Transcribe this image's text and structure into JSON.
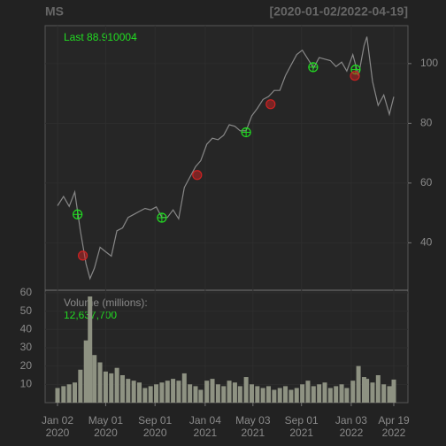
{
  "chart_data": {
    "type": "line",
    "title": "MS",
    "range_label": "[2020-01-02/2022-04-19]",
    "last_label": "Last 88.910004",
    "volume_label": "Volume (millions):",
    "volume_last": "12,637,700",
    "color": "#888888",
    "volume_color": "#8e9282",
    "buy_color": "#22dd22",
    "sell_color": "#cc2222",
    "grid": true,
    "x": [
      "2020-01-02",
      "2020-01-17",
      "2020-01-31",
      "2020-02-14",
      "2020-02-28",
      "2020-03-13",
      "2020-03-23",
      "2020-04-03",
      "2020-04-17",
      "2020-05-01",
      "2020-05-15",
      "2020-05-29",
      "2020-06-12",
      "2020-06-26",
      "2020-07-10",
      "2020-07-24",
      "2020-08-07",
      "2020-08-21",
      "2020-09-04",
      "2020-09-18",
      "2020-10-02",
      "2020-10-16",
      "2020-10-30",
      "2020-11-13",
      "2020-11-27",
      "2020-12-11",
      "2020-12-24",
      "2021-01-08",
      "2021-01-22",
      "2021-02-05",
      "2021-02-19",
      "2021-03-05",
      "2021-03-19",
      "2021-04-01",
      "2021-04-16",
      "2021-04-30",
      "2021-05-14",
      "2021-05-28",
      "2021-06-11",
      "2021-06-25",
      "2021-07-09",
      "2021-07-23",
      "2021-08-06",
      "2021-08-20",
      "2021-09-03",
      "2021-09-17",
      "2021-10-01",
      "2021-10-15",
      "2021-10-29",
      "2021-11-12",
      "2021-11-26",
      "2021-12-10",
      "2021-12-23",
      "2022-01-07",
      "2022-01-21",
      "2022-02-04",
      "2022-02-11",
      "2022-02-25",
      "2022-03-11",
      "2022-03-25",
      "2022-04-08",
      "2022-04-19"
    ],
    "values": [
      52.4,
      55.5,
      52.2,
      57.0,
      44.0,
      33.0,
      28.0,
      31.5,
      38.5,
      37.0,
      35.5,
      44.0,
      45.0,
      48.5,
      49.5,
      50.5,
      51.5,
      51.0,
      52.0,
      48.5,
      48.5,
      51.0,
      48.0,
      58.5,
      62.0,
      65.5,
      67.5,
      73.0,
      75.0,
      74.5,
      76.0,
      79.5,
      79.0,
      77.5,
      77.5,
      82.5,
      85.0,
      88.0,
      89.0,
      91.0,
      91.0,
      96.0,
      99.5,
      103.0,
      104.5,
      101.5,
      98.5,
      102.0,
      101.5,
      101.0,
      99.0,
      100.5,
      97.5,
      103.0,
      96.0,
      106.0,
      109.0,
      94.0,
      86.0,
      89.5,
      83.0,
      88.91
    ],
    "volume": [
      8,
      9,
      10,
      11,
      18,
      34,
      58,
      26,
      22,
      17,
      16,
      19,
      15,
      13,
      12,
      11,
      8,
      9,
      10,
      11,
      12,
      13,
      12,
      16,
      10,
      9,
      7,
      12,
      13,
      10,
      9,
      12,
      11,
      9,
      14,
      10,
      9,
      8,
      9,
      7,
      8,
      9,
      7,
      8,
      10,
      12,
      9,
      10,
      11,
      8,
      9,
      10,
      8,
      12,
      20,
      14,
      13,
      11,
      15,
      10,
      9,
      12.6
    ],
    "signals": [
      {
        "date": "2020-02-21",
        "value": 49.5,
        "type": "buy"
      },
      {
        "date": "2020-03-05",
        "value": 35.7,
        "type": "sell"
      },
      {
        "date": "2020-09-18",
        "value": 48.4,
        "type": "buy"
      },
      {
        "date": "2020-12-15",
        "value": 62.7,
        "type": "sell"
      },
      {
        "date": "2021-04-16",
        "value": 77.0,
        "type": "buy"
      },
      {
        "date": "2021-06-16",
        "value": 86.4,
        "type": "sell"
      },
      {
        "date": "2021-09-30",
        "value": 98.8,
        "type": "buy"
      },
      {
        "date": "2022-01-14",
        "value": 98.0,
        "type": "buy"
      },
      {
        "date": "2022-01-12",
        "value": 95.9,
        "type": "sell"
      }
    ],
    "xlim": [
      "2020-01-02",
      "2022-04-19"
    ],
    "xticks": [
      {
        "value": "2020-01-02",
        "label": "Jan 02\n2020"
      },
      {
        "value": "2020-05-01",
        "label": "May 01\n2020"
      },
      {
        "value": "2020-09-01",
        "label": "Sep 01\n2020"
      },
      {
        "value": "2021-01-04",
        "label": "Jan 04\n2021"
      },
      {
        "value": "2021-05-03",
        "label": "May 03\n2021"
      },
      {
        "value": "2021-09-01",
        "label": "Sep 01\n2021"
      },
      {
        "value": "2022-01-03",
        "label": "Jan 03\n2022"
      },
      {
        "value": "2022-04-19",
        "label": "Apr 19\n2022"
      }
    ],
    "ylim": [
      24.1,
      112.7
    ],
    "yticks": [
      40,
      60,
      80,
      100
    ],
    "vlim": [
      0,
      61.4
    ],
    "vticks": [
      10,
      20,
      30,
      40,
      50,
      60
    ]
  }
}
